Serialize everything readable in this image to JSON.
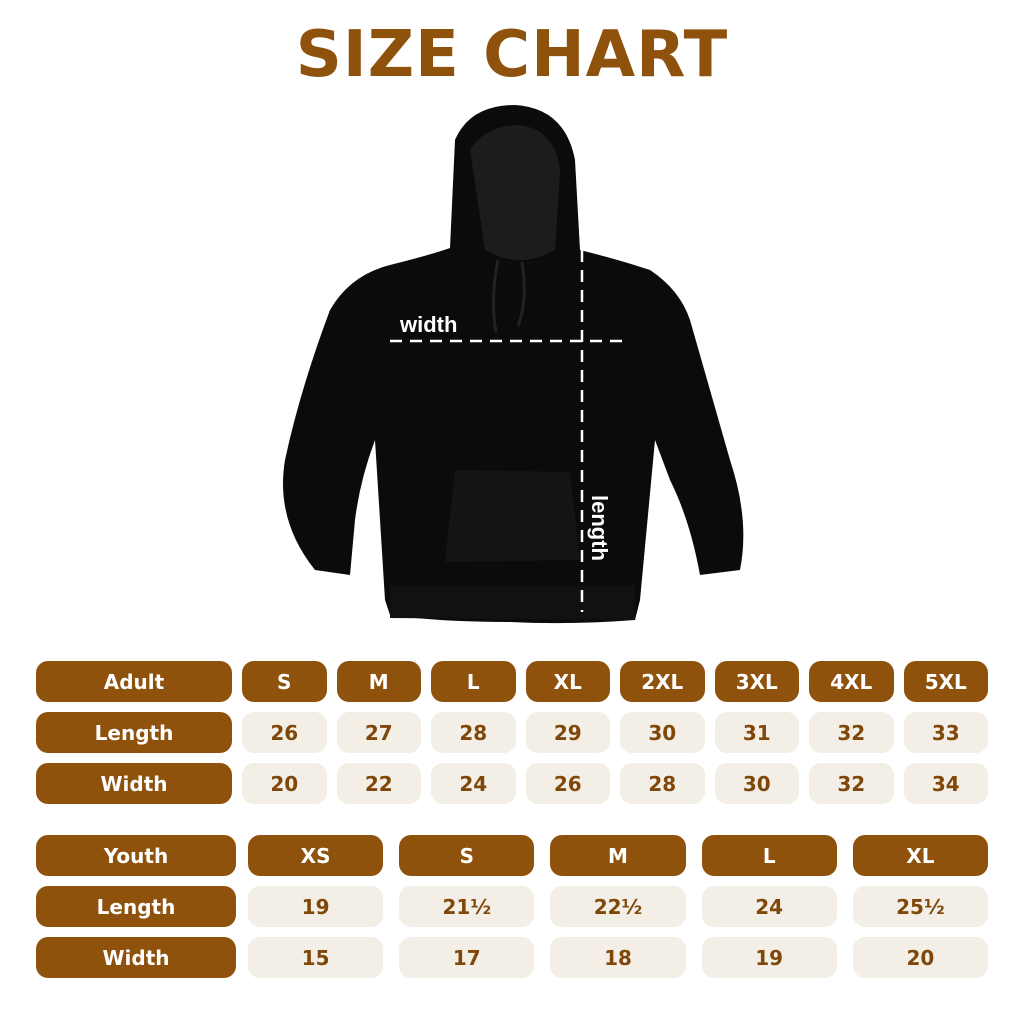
{
  "title": "SIZE CHART",
  "garment": {
    "width_label": "width",
    "length_label": "length"
  },
  "colors": {
    "accent": "#8f520d",
    "cell_bg": "#f3eee6",
    "cell_text": "#80470b"
  },
  "adult": {
    "header": [
      "Adult",
      "S",
      "M",
      "L",
      "XL",
      "2XL",
      "3XL",
      "4XL",
      "5XL"
    ],
    "rows": [
      [
        "Length",
        "26",
        "27",
        "28",
        "29",
        "30",
        "31",
        "32",
        "33"
      ],
      [
        "Width",
        "20",
        "22",
        "24",
        "26",
        "28",
        "30",
        "32",
        "34"
      ]
    ]
  },
  "youth": {
    "header": [
      "Youth",
      "XS",
      "S",
      "M",
      "L",
      "XL"
    ],
    "rows": [
      [
        "Length",
        "19",
        "21½",
        "22½",
        "24",
        "25½"
      ],
      [
        "Width",
        "15",
        "17",
        "18",
        "19",
        "20"
      ]
    ]
  }
}
